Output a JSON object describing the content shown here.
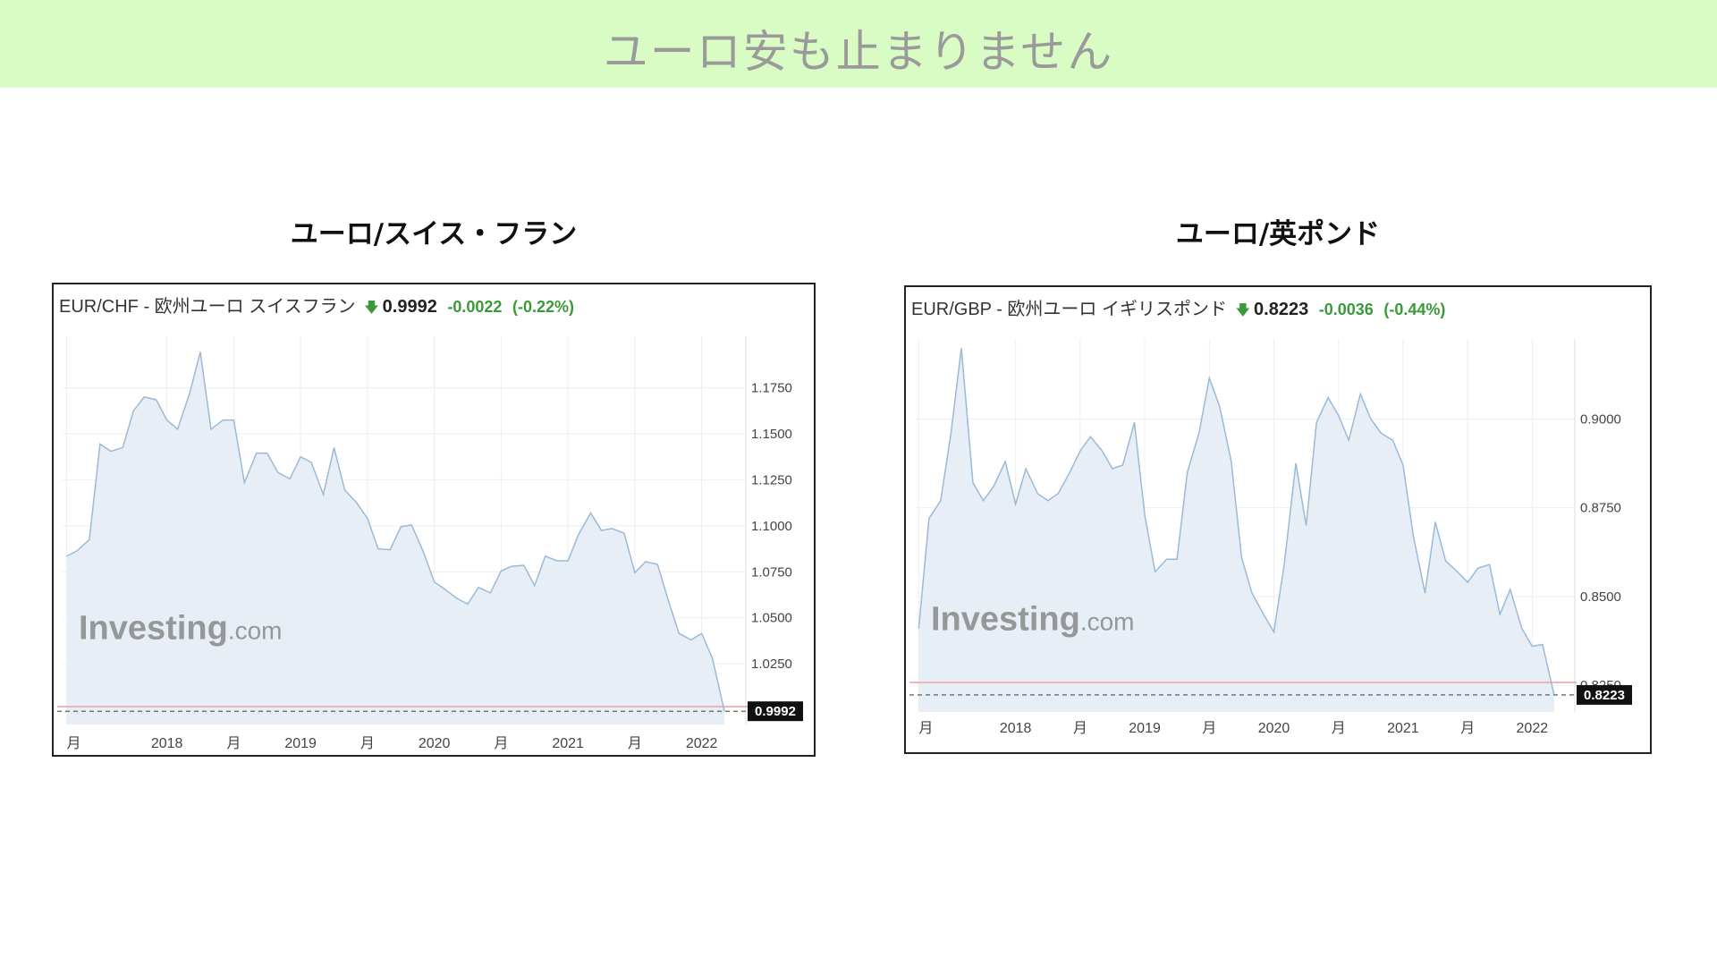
{
  "banner": {
    "title": "ユーロ安も止まりません",
    "bg": "#d8fcc4"
  },
  "chart_data": [
    {
      "type": "area",
      "panel_title": "ユーロ/スイス・フラン",
      "header": {
        "pair": "EUR/CHF - 欧州ユーロ スイスフラン",
        "price": "0.9992",
        "change": "-0.0022",
        "change_pct": "(-0.22%)"
      },
      "y_ticks": [
        "1.1750",
        "1.1500",
        "1.1250",
        "1.1000",
        "1.0750",
        "1.0500",
        "1.0250"
      ],
      "x_ticks": [
        {
          "x": 2017.25,
          "label": "月"
        },
        {
          "x": 2018.0,
          "label": "2018"
        },
        {
          "x": 2018.5,
          "label": "月"
        },
        {
          "x": 2019.0,
          "label": "2019"
        },
        {
          "x": 2019.5,
          "label": "月"
        },
        {
          "x": 2020.0,
          "label": "2020"
        },
        {
          "x": 2020.5,
          "label": "月"
        },
        {
          "x": 2021.0,
          "label": "2021"
        },
        {
          "x": 2021.5,
          "label": "月"
        },
        {
          "x": 2022.0,
          "label": "2022"
        }
      ],
      "xlim": [
        2017.22,
        2022.33
      ],
      "ylim": [
        0.992,
        1.203
      ],
      "last_label": "0.9992",
      "last_value": 0.9992,
      "reference_value": 1.0017,
      "watermark": {
        "brand": "Investing",
        "suffix": ".com"
      },
      "colors": {
        "line": "#9bbad6",
        "fill": "#e7eef5",
        "ref": "#e8a0a0",
        "badge": "#111111"
      },
      "series": [
        {
          "values": [
            [
              2017.25,
              1.0835
            ],
            [
              2017.33,
              1.0865
            ],
            [
              2017.42,
              1.0925
            ],
            [
              2017.5,
              1.1445
            ],
            [
              2017.58,
              1.1405
            ],
            [
              2017.67,
              1.1425
            ],
            [
              2017.75,
              1.1625
            ],
            [
              2017.83,
              1.17
            ],
            [
              2017.92,
              1.1685
            ],
            [
              2018.0,
              1.1575
            ],
            [
              2018.08,
              1.1525
            ],
            [
              2018.17,
              1.172
            ],
            [
              2018.25,
              1.1945
            ],
            [
              2018.33,
              1.1525
            ],
            [
              2018.42,
              1.1575
            ],
            [
              2018.5,
              1.1575
            ],
            [
              2018.58,
              1.1235
            ],
            [
              2018.67,
              1.1395
            ],
            [
              2018.75,
              1.1395
            ],
            [
              2018.83,
              1.129
            ],
            [
              2018.92,
              1.1255
            ],
            [
              2019.0,
              1.1375
            ],
            [
              2019.08,
              1.1345
            ],
            [
              2019.17,
              1.117
            ],
            [
              2019.25,
              1.1425
            ],
            [
              2019.33,
              1.1195
            ],
            [
              2019.42,
              1.1125
            ],
            [
              2019.5,
              1.104
            ],
            [
              2019.58,
              1.0875
            ],
            [
              2019.67,
              1.087
            ],
            [
              2019.75,
              1.0995
            ],
            [
              2019.83,
              1.1005
            ],
            [
              2019.92,
              1.0855
            ],
            [
              2020.0,
              1.0695
            ],
            [
              2020.08,
              1.0655
            ],
            [
              2020.17,
              1.0605
            ],
            [
              2020.25,
              1.0575
            ],
            [
              2020.33,
              1.0665
            ],
            [
              2020.42,
              1.0635
            ],
            [
              2020.5,
              1.0755
            ],
            [
              2020.58,
              1.078
            ],
            [
              2020.67,
              1.0785
            ],
            [
              2020.75,
              1.0675
            ],
            [
              2020.83,
              1.0835
            ],
            [
              2020.92,
              1.081
            ],
            [
              2021.0,
              1.081
            ],
            [
              2021.08,
              1.0955
            ],
            [
              2021.17,
              1.107
            ],
            [
              2021.25,
              1.0975
            ],
            [
              2021.33,
              1.0985
            ],
            [
              2021.42,
              1.096
            ],
            [
              2021.5,
              1.0745
            ],
            [
              2021.58,
              1.0805
            ],
            [
              2021.67,
              1.079
            ],
            [
              2021.75,
              1.0595
            ],
            [
              2021.83,
              1.0415
            ],
            [
              2021.92,
              1.038
            ],
            [
              2022.0,
              1.0415
            ],
            [
              2022.08,
              1.028
            ],
            [
              2022.17,
              0.9992
            ]
          ]
        }
      ]
    },
    {
      "type": "area",
      "panel_title": "ユーロ/英ポンド",
      "header": {
        "pair": "EUR/GBP - 欧州ユーロ イギリスポンド",
        "price": "0.8223",
        "change": "-0.0036",
        "change_pct": "(-0.44%)"
      },
      "y_ticks": [
        "0.9000",
        "0.8750",
        "0.8500",
        "0.8250"
      ],
      "x_ticks": [
        {
          "x": 2017.25,
          "label": "月"
        },
        {
          "x": 2018.0,
          "label": "2018"
        },
        {
          "x": 2018.5,
          "label": "月"
        },
        {
          "x": 2019.0,
          "label": "2019"
        },
        {
          "x": 2019.5,
          "label": "月"
        },
        {
          "x": 2020.0,
          "label": "2020"
        },
        {
          "x": 2020.5,
          "label": "月"
        },
        {
          "x": 2021.0,
          "label": "2021"
        },
        {
          "x": 2021.5,
          "label": "月"
        },
        {
          "x": 2022.0,
          "label": "2022"
        }
      ],
      "xlim": [
        2017.22,
        2022.33
      ],
      "ylim": [
        0.8175,
        0.9225
      ],
      "last_label": "0.8223",
      "last_value": 0.8223,
      "reference_value": 0.8258,
      "watermark": {
        "brand": "Investing",
        "suffix": ".com"
      },
      "colors": {
        "line": "#9bbad6",
        "fill": "#e7eef5",
        "ref": "#e8a0a0",
        "badge": "#111111"
      },
      "series": [
        {
          "values": [
            [
              2017.25,
              0.841
            ],
            [
              2017.33,
              0.872
            ],
            [
              2017.42,
              0.877
            ],
            [
              2017.5,
              0.896
            ],
            [
              2017.58,
              0.92
            ],
            [
              2017.67,
              0.882
            ],
            [
              2017.75,
              0.877
            ],
            [
              2017.83,
              0.881
            ],
            [
              2017.92,
              0.888
            ],
            [
              2018.0,
              0.876
            ],
            [
              2018.08,
              0.886
            ],
            [
              2018.17,
              0.879
            ],
            [
              2018.25,
              0.877
            ],
            [
              2018.33,
              0.879
            ],
            [
              2018.42,
              0.885
            ],
            [
              2018.5,
              0.891
            ],
            [
              2018.58,
              0.895
            ],
            [
              2018.67,
              0.891
            ],
            [
              2018.75,
              0.886
            ],
            [
              2018.83,
              0.887
            ],
            [
              2018.92,
              0.899
            ],
            [
              2019.0,
              0.873
            ],
            [
              2019.08,
              0.857
            ],
            [
              2019.17,
              0.8605
            ],
            [
              2019.25,
              0.8605
            ],
            [
              2019.33,
              0.885
            ],
            [
              2019.42,
              0.896
            ],
            [
              2019.5,
              0.9115
            ],
            [
              2019.58,
              0.9035
            ],
            [
              2019.67,
              0.888
            ],
            [
              2019.75,
              0.861
            ],
            [
              2019.83,
              0.851
            ],
            [
              2019.92,
              0.845
            ],
            [
              2020.0,
              0.84
            ],
            [
              2020.08,
              0.859
            ],
            [
              2020.17,
              0.8875
            ],
            [
              2020.25,
              0.87
            ],
            [
              2020.33,
              0.899
            ],
            [
              2020.42,
              0.906
            ],
            [
              2020.5,
              0.901
            ],
            [
              2020.58,
              0.894
            ],
            [
              2020.67,
              0.907
            ],
            [
              2020.75,
              0.9
            ],
            [
              2020.83,
              0.896
            ],
            [
              2020.92,
              0.894
            ],
            [
              2021.0,
              0.887
            ],
            [
              2021.08,
              0.867
            ],
            [
              2021.17,
              0.851
            ],
            [
              2021.25,
              0.871
            ],
            [
              2021.33,
              0.86
            ],
            [
              2021.42,
              0.857
            ],
            [
              2021.5,
              0.854
            ],
            [
              2021.58,
              0.858
            ],
            [
              2021.67,
              0.859
            ],
            [
              2021.75,
              0.845
            ],
            [
              2021.83,
              0.852
            ],
            [
              2021.92,
              0.841
            ],
            [
              2022.0,
              0.836
            ],
            [
              2022.08,
              0.8365
            ],
            [
              2022.17,
              0.8223
            ]
          ]
        }
      ]
    }
  ]
}
